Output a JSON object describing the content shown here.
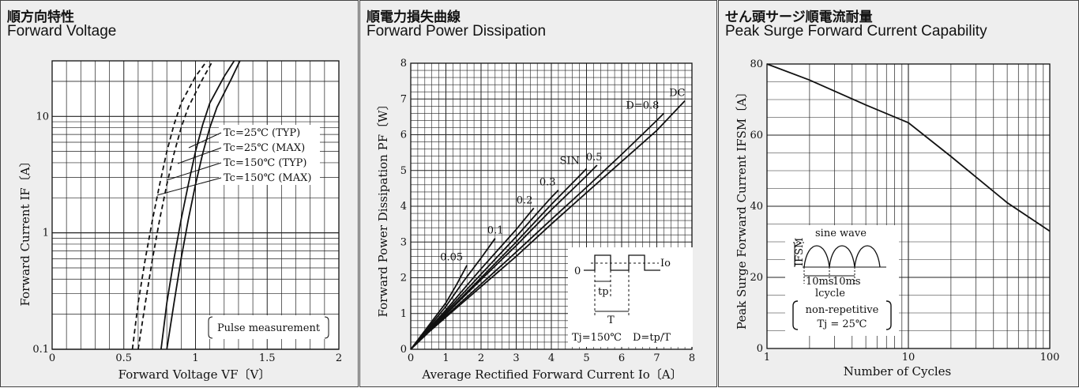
{
  "chart_data": [
    {
      "type": "line",
      "title": "順方向特性",
      "subtitle": "Forward Voltage",
      "xlabel": "Forward Voltage VF〔V〕",
      "ylabel": "Forward Current IF〔A〕",
      "xlim": [
        0,
        2
      ],
      "ylim": [
        0.1,
        30
      ],
      "yscale": "log",
      "grid": true,
      "x_ticks": [
        "0",
        "0.5",
        "1",
        "1.5",
        "2"
      ],
      "y_ticks": [
        "0.1",
        "1",
        "10"
      ],
      "series": [
        {
          "name": "Tc=25℃ (TYP)",
          "style": "solid",
          "points": [
            [
              0.76,
              0.1
            ],
            [
              0.8,
              0.25
            ],
            [
              0.85,
              0.6
            ],
            [
              0.9,
              1.3
            ],
            [
              0.95,
              2.6
            ],
            [
              1.0,
              5
            ],
            [
              1.05,
              8.5
            ],
            [
              1.1,
              13
            ],
            [
              1.2,
              22
            ],
            [
              1.27,
              30
            ]
          ]
        },
        {
          "name": "Tc=25℃ (MAX)",
          "style": "solid",
          "points": [
            [
              0.8,
              0.1
            ],
            [
              0.85,
              0.25
            ],
            [
              0.9,
              0.6
            ],
            [
              0.95,
              1.3
            ],
            [
              1.0,
              2.6
            ],
            [
              1.05,
              4.8
            ],
            [
              1.1,
              8
            ],
            [
              1.15,
              12
            ],
            [
              1.25,
              21
            ],
            [
              1.31,
              30
            ]
          ]
        },
        {
          "name": "Tc=150℃ (TYP)",
          "style": "dashed",
          "points": [
            [
              0.56,
              0.1
            ],
            [
              0.6,
              0.25
            ],
            [
              0.65,
              0.6
            ],
            [
              0.7,
              1.3
            ],
            [
              0.75,
              2.6
            ],
            [
              0.8,
              5
            ],
            [
              0.85,
              8.5
            ],
            [
              0.9,
              13
            ],
            [
              1.0,
              22
            ],
            [
              1.08,
              30
            ]
          ]
        },
        {
          "name": "Tc=150℃ (MAX)",
          "style": "dashed",
          "points": [
            [
              0.6,
              0.1
            ],
            [
              0.65,
              0.25
            ],
            [
              0.7,
              0.6
            ],
            [
              0.75,
              1.3
            ],
            [
              0.8,
              2.6
            ],
            [
              0.85,
              4.8
            ],
            [
              0.9,
              8
            ],
            [
              0.95,
              12
            ],
            [
              1.05,
              21
            ],
            [
              1.12,
              30
            ]
          ]
        }
      ],
      "legend": [
        "Tc=25℃ (TYP)",
        "Tc=25℃ (MAX)",
        "Tc=150℃ (TYP)",
        "Tc=150℃ (MAX)"
      ],
      "annotation": "Pulse measurement"
    },
    {
      "type": "line",
      "title": "順電力損失曲線",
      "subtitle": "Forward  Power  Dissipation",
      "xlabel": "Average Rectified Forward Current Io〔A〕",
      "ylabel": "Forward Power Dissipation PF〔W〕",
      "xlim": [
        0,
        8
      ],
      "ylim": [
        0,
        8
      ],
      "grid": true,
      "x_ticks": [
        "0",
        "1",
        "2",
        "3",
        "4",
        "5",
        "6",
        "7",
        "8"
      ],
      "y_ticks": [
        "0",
        "1",
        "2",
        "3",
        "4",
        "5",
        "6",
        "7",
        "8"
      ],
      "series": [
        {
          "name": "0.05",
          "points": [
            [
              0,
              0
            ],
            [
              0.5,
              0.65
            ],
            [
              1,
              1.3
            ],
            [
              1.3,
              1.8
            ],
            [
              1.6,
              2.35
            ]
          ]
        },
        {
          "name": "0.1",
          "points": [
            [
              0,
              0
            ],
            [
              0.5,
              0.6
            ],
            [
              1,
              1.2
            ],
            [
              1.5,
              1.9
            ],
            [
              2,
              2.55
            ],
            [
              2.4,
              3.1
            ]
          ]
        },
        {
          "name": "0.2",
          "points": [
            [
              0,
              0
            ],
            [
              0.5,
              0.56
            ],
            [
              1,
              1.1
            ],
            [
              2,
              2.25
            ],
            [
              3,
              3.35
            ],
            [
              3.5,
              3.95
            ]
          ]
        },
        {
          "name": "0.3",
          "points": [
            [
              0,
              0
            ],
            [
              0.5,
              0.53
            ],
            [
              1,
              1.05
            ],
            [
              2,
              2.1
            ],
            [
              3,
              3.15
            ],
            [
              4,
              4.25
            ],
            [
              4.2,
              4.45
            ]
          ]
        },
        {
          "name": "SIN",
          "points": [
            [
              0,
              0
            ],
            [
              0.5,
              0.52
            ],
            [
              1,
              1.0
            ],
            [
              2,
              2.0
            ],
            [
              3,
              3.0
            ],
            [
              4,
              4.05
            ],
            [
              5,
              5.05
            ]
          ]
        },
        {
          "name": "0.5",
          "points": [
            [
              0,
              0
            ],
            [
              0.5,
              0.5
            ],
            [
              1,
              0.98
            ],
            [
              2,
              1.95
            ],
            [
              3,
              2.9
            ],
            [
              4,
              3.9
            ],
            [
              5,
              4.85
            ],
            [
              5.3,
              5.15
            ]
          ]
        },
        {
          "name": "D=0.8",
          "points": [
            [
              0,
              0
            ],
            [
              0.5,
              0.48
            ],
            [
              1,
              0.93
            ],
            [
              2,
              1.82
            ],
            [
              3,
              2.72
            ],
            [
              4,
              3.63
            ],
            [
              5,
              4.53
            ],
            [
              6,
              5.45
            ],
            [
              7,
              6.4
            ],
            [
              7.2,
              6.6
            ]
          ]
        },
        {
          "name": "DC",
          "points": [
            [
              0,
              0
            ],
            [
              0.5,
              0.47
            ],
            [
              1,
              0.9
            ],
            [
              2,
              1.75
            ],
            [
              3,
              2.6
            ],
            [
              4,
              3.5
            ],
            [
              5,
              4.38
            ],
            [
              6,
              5.25
            ],
            [
              7,
              6.12
            ],
            [
              7.8,
              6.95
            ]
          ]
        }
      ],
      "inset": {
        "labels": [
          "0",
          "Io",
          "tp",
          "T"
        ],
        "condition_1": "Tj=150℃",
        "condition_2": "D=tp/T"
      }
    },
    {
      "type": "line",
      "title": "せん頭サージ順電流耐量",
      "subtitle": "Peak  Surge  Forward Current Capability",
      "xlabel": "Number of Cycles",
      "ylabel": "Peak Surge Forward Current IFSM〔A〕",
      "xlim": [
        1,
        100
      ],
      "ylim": [
        0,
        80
      ],
      "xscale": "log",
      "grid": true,
      "x_ticks": [
        "1",
        "10",
        "100"
      ],
      "y_ticks": [
        "0",
        "20",
        "40",
        "60",
        "80"
      ],
      "series": [
        {
          "name": "IFSM",
          "points": [
            [
              1,
              80
            ],
            [
              2,
              75.5
            ],
            [
              5,
              68.5
            ],
            [
              10,
              63.5
            ],
            [
              20,
              54
            ],
            [
              50,
              41
            ],
            [
              100,
              33
            ]
          ]
        }
      ],
      "inset": {
        "title": "sine wave",
        "ifsm_label": "IFSM",
        "ms_1": "10ms",
        "ms_2": "10ms",
        "cycle_label": "lcycle",
        "note_1": "non-repetitive",
        "note_2": "Tj = 25℃"
      }
    }
  ]
}
